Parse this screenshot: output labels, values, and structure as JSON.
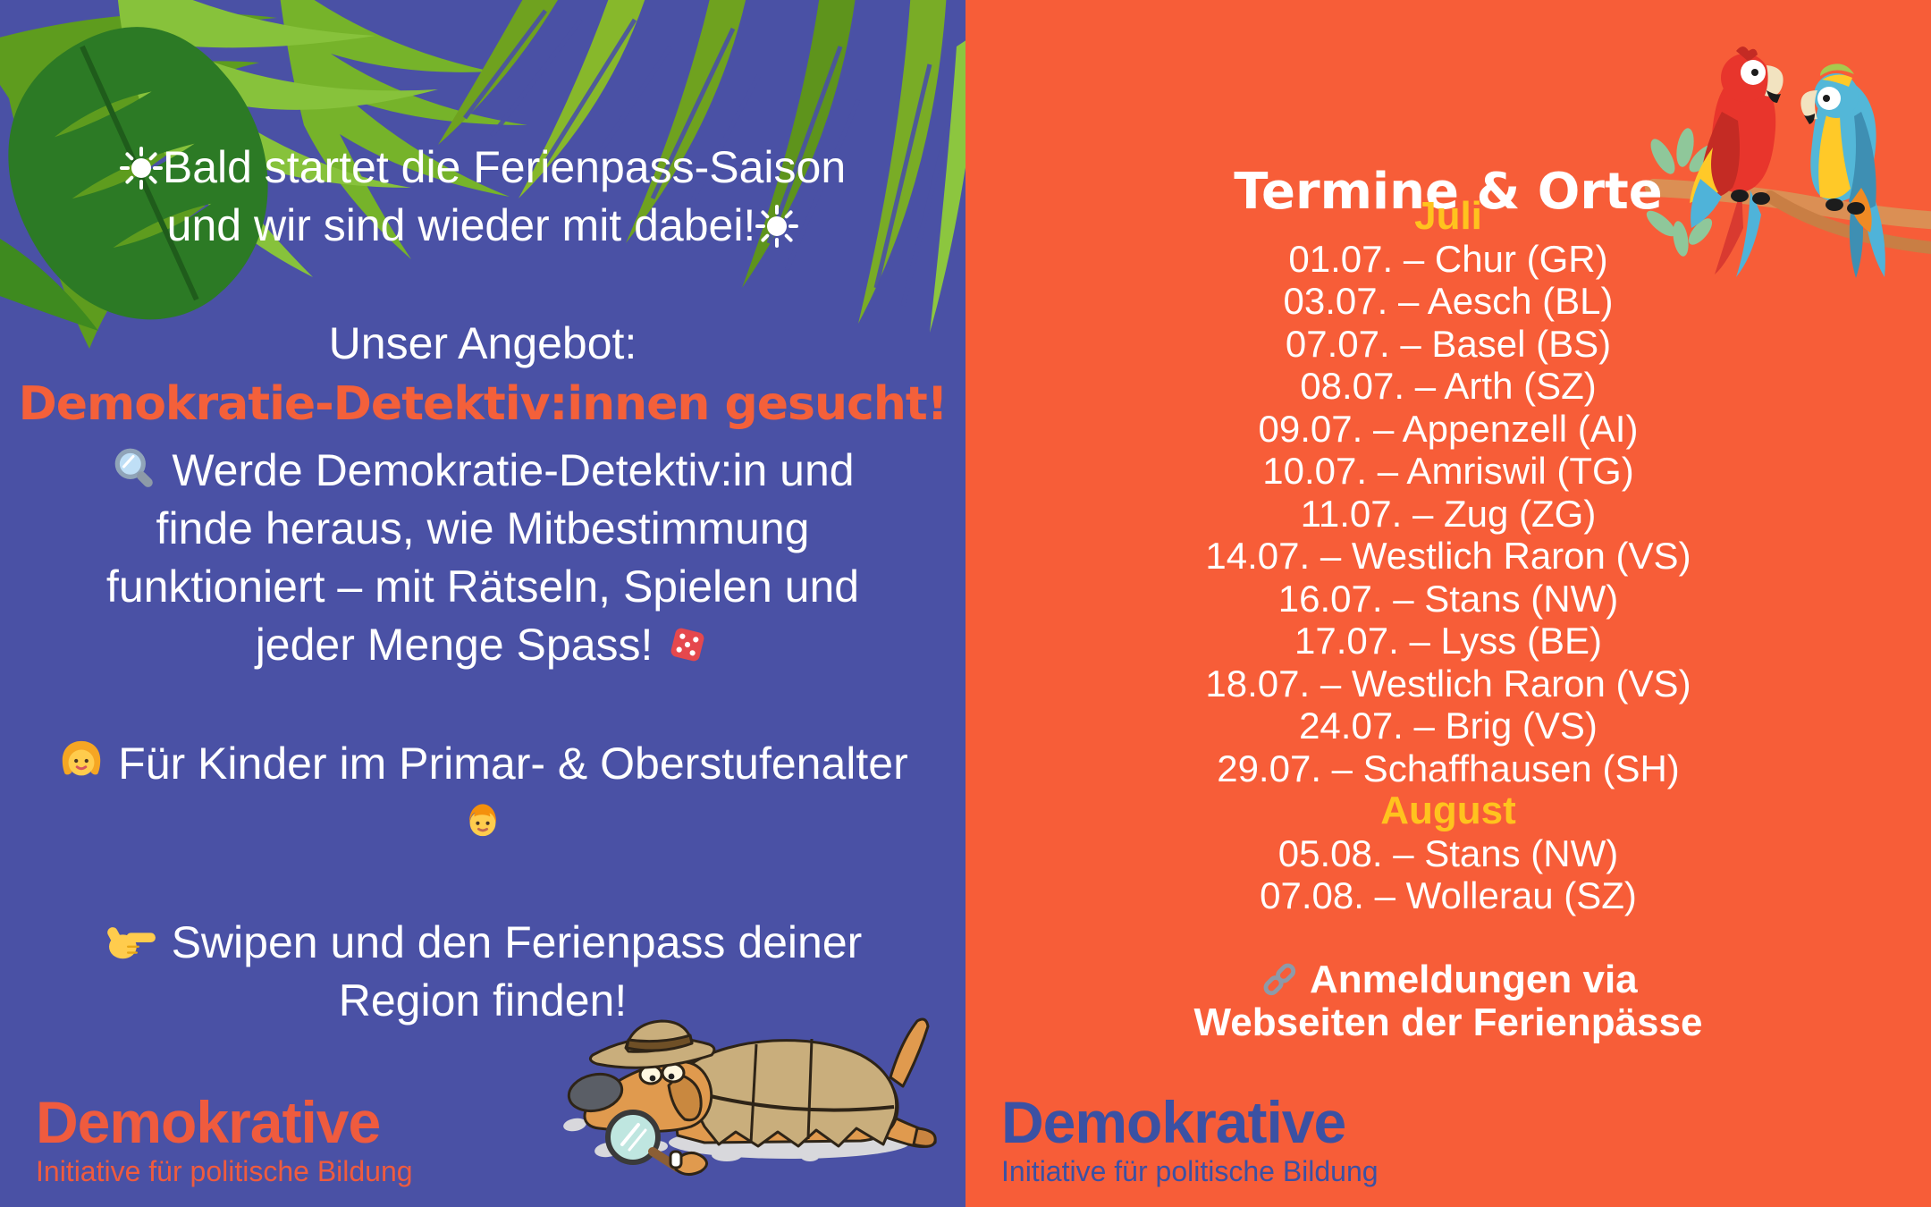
{
  "colors": {
    "left_bg": "#4A51A5",
    "right_bg": "#F75D38",
    "accent_orange": "#F4603A",
    "accent_yellow": "#FFC31E",
    "text_white": "#FFFFFF",
    "logo_orange": "#EF5B3E",
    "logo_blue": "#3B51A3"
  },
  "left_panel": {
    "intro": {
      "line1": "Bald startet die Ferienpass-Saison",
      "line2": "und wir sind wieder mit dabei!"
    },
    "offer_label": "Unser Angebot:",
    "headline": "Demokratie-Detektiv:innen gesucht!",
    "description": {
      "line1": "Werde Demokratie-Detektiv:in und",
      "line2": "finde heraus, wie Mitbestimmung",
      "line3": "funktioniert – mit Rätseln, Spielen und",
      "line4": "jeder Menge Spass!"
    },
    "audience": "Für Kinder im Primar- & Oberstufenalter",
    "cta": {
      "line1": "Swipen und den Ferienpass deiner",
      "line2": "Region finden!"
    },
    "logo": {
      "brand": "Demokrative",
      "tagline": "Initiative für politische Bildung"
    }
  },
  "right_panel": {
    "title": "Termine & Orte",
    "months": [
      {
        "name": "Juli",
        "events": [
          "01.07. – Chur (GR)",
          "03.07. – Aesch (BL)",
          "07.07. – Basel (BS)",
          "08.07. – Arth (SZ)",
          "09.07. – Appenzell (AI)",
          "10.07. – Amriswil (TG)",
          "11.07. – Zug (ZG)",
          "14.07. – Westlich Raron (VS)",
          "16.07. – Stans (NW)",
          "17.07. – Lyss (BE)",
          "18.07. – Westlich Raron (VS)",
          "24.07. – Brig (VS)",
          "29.07. – Schaffhausen (SH)"
        ]
      },
      {
        "name": "August",
        "events": [
          "05.08. – Stans (NW)",
          "07.08. – Wollerau (SZ)"
        ]
      }
    ],
    "note": {
      "line1": "Anmeldungen via",
      "line2": "Webseiten der Ferienpässe"
    },
    "logo": {
      "brand": "Demokrative",
      "tagline": "Initiative für politische Bildung"
    }
  },
  "icons": {
    "sun": "white sun with rays",
    "magnifier": "magnifying glass",
    "dice": "red game die",
    "girl": "girl face emoji",
    "boy": "boy face emoji",
    "pointing": "backhand index pointing right",
    "link": "chain link"
  }
}
